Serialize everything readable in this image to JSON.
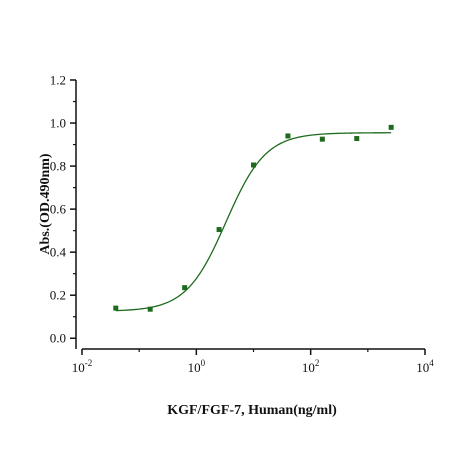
{
  "chart_data": {
    "type": "scatter",
    "xlabel": "KGF/FGF-7, Human(ng/ml)",
    "ylabel": "Abs.(OD.490nm)",
    "xscale": "log",
    "xlim": [
      0.01,
      10000
    ],
    "ylim": [
      -0.05,
      1.2
    ],
    "x_ticks": [
      {
        "base": "10",
        "exp": "-2",
        "value": 0.01
      },
      {
        "base": "10",
        "exp": "0",
        "value": 1
      },
      {
        "base": "10",
        "exp": "2",
        "value": 100
      },
      {
        "base": "10",
        "exp": "4",
        "value": 10000
      }
    ],
    "y_ticks": [
      "0.0",
      "0.2",
      "0.4",
      "0.6",
      "0.8",
      "1.0",
      "1.2"
    ],
    "grid": false,
    "colors": {
      "series": "#1e6b1e",
      "axis": "#111111"
    },
    "series": [
      {
        "marker": "square",
        "x": [
          0.039,
          0.156,
          0.625,
          2.5,
          10,
          40,
          160,
          640,
          2560
        ],
        "y": [
          0.14,
          0.135,
          0.235,
          0.505,
          0.805,
          0.94,
          0.925,
          0.928,
          0.98
        ]
      }
    ],
    "fit": {
      "model": "4PL",
      "bottom": 0.125,
      "top": 0.955,
      "ec50": 3.3,
      "hill": 1.25
    }
  }
}
